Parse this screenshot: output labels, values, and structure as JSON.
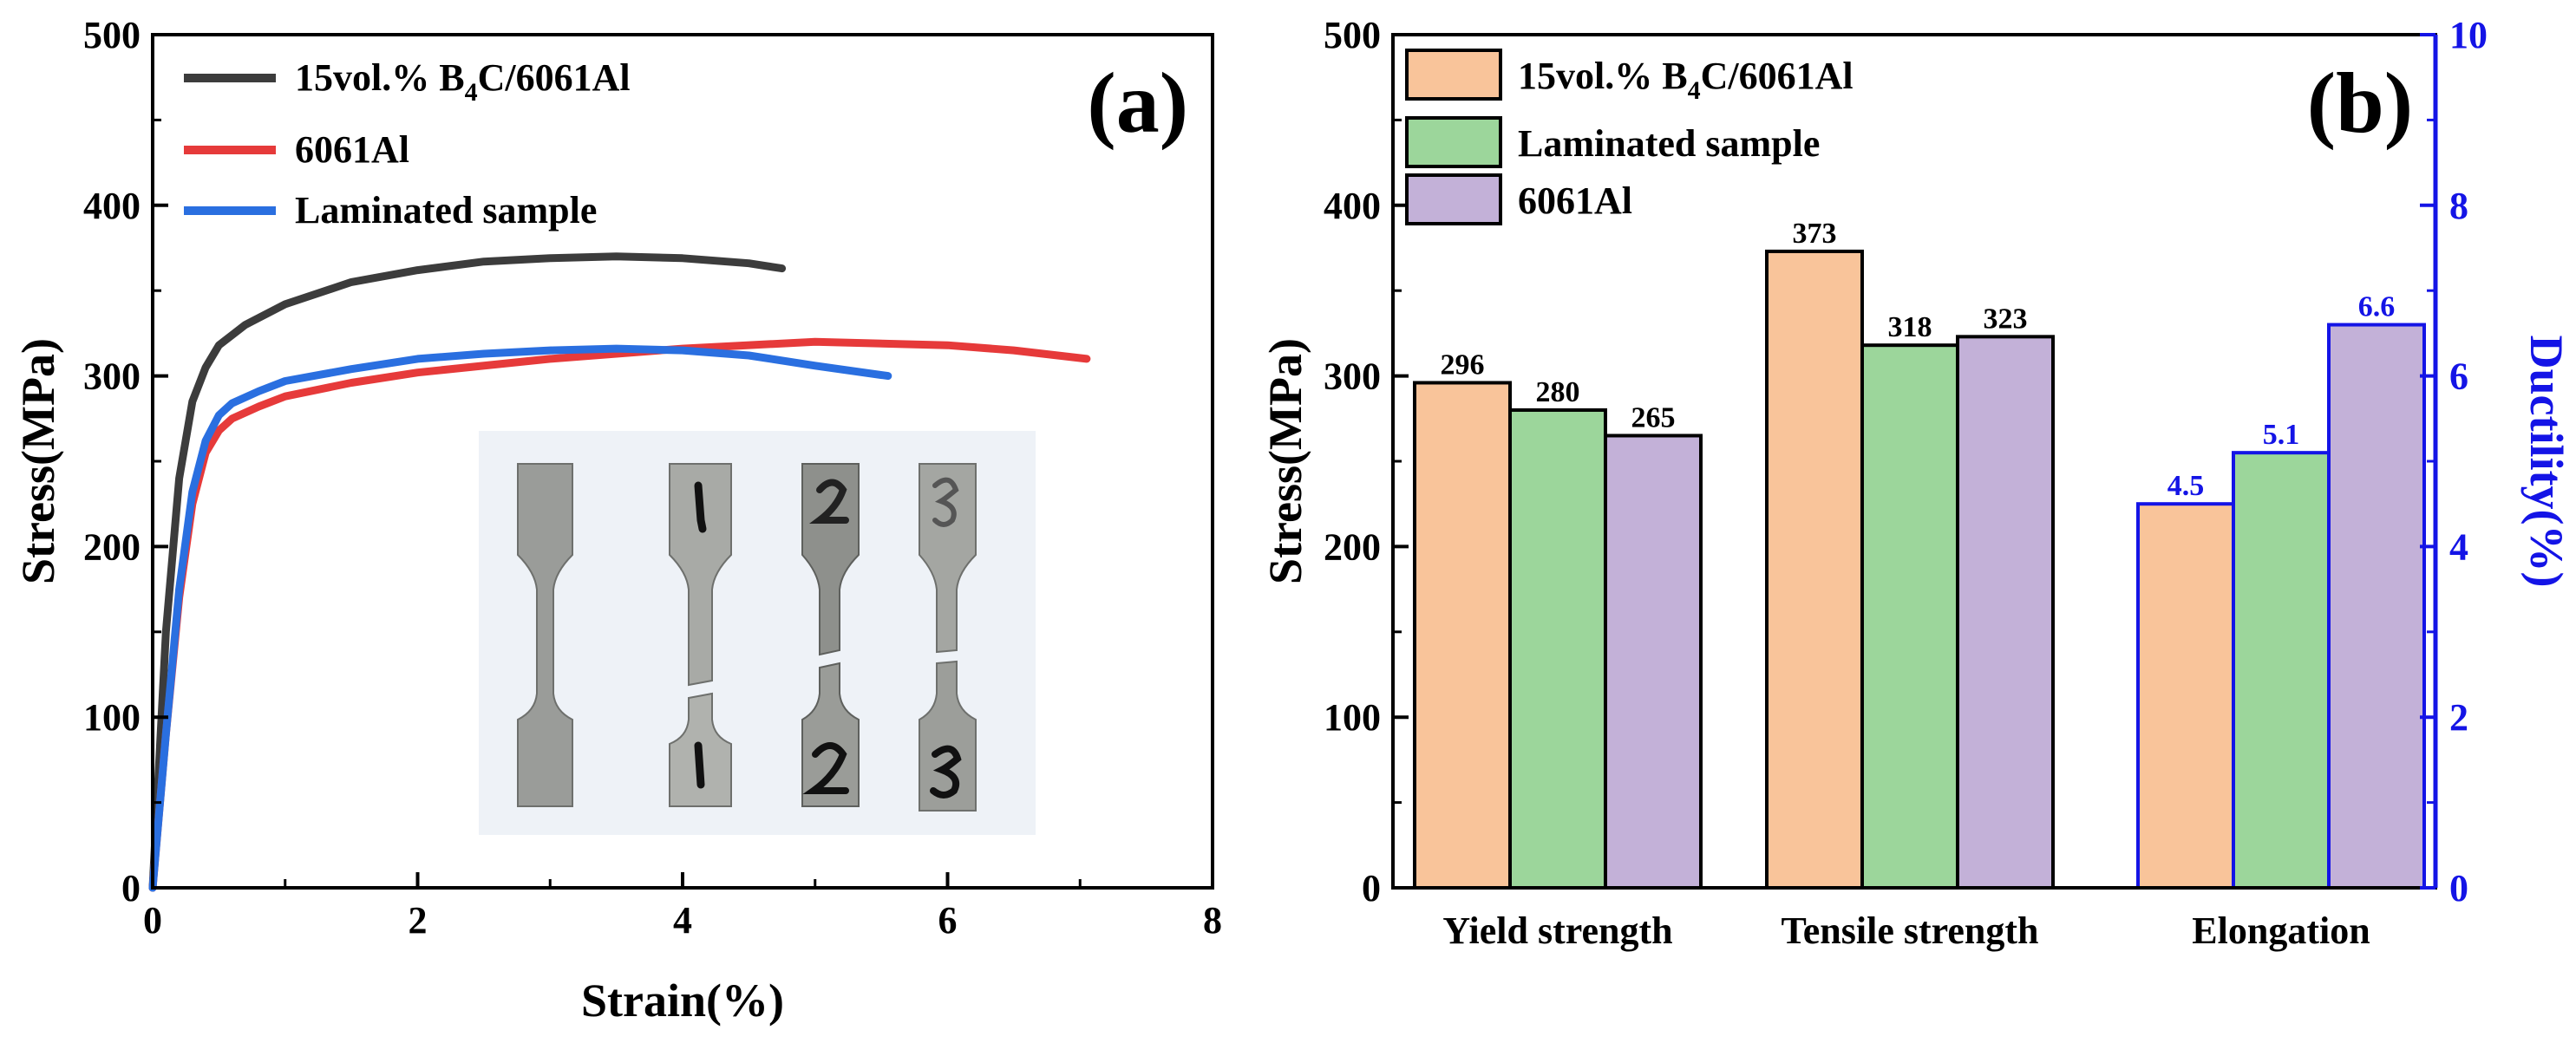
{
  "chart_data": [
    {
      "type": "line",
      "panel_label": "(a)",
      "xlabel": "Strain(%)",
      "ylabel": "Stress(MPa)",
      "xlim": [
        0,
        8
      ],
      "ylim": [
        0,
        500
      ],
      "xticks": [
        "0",
        "2",
        "4",
        "6",
        "8"
      ],
      "yticks": [
        "0",
        "100",
        "200",
        "300",
        "400",
        "500"
      ],
      "legend_position": "top-left",
      "inset": "photo of tensile test specimens labeled 1, 2, 3 (fractured) beside an untested specimen",
      "series": [
        {
          "name": "15vol.% B4C/6061Al",
          "legend_main": "15vol.% B",
          "legend_sub": "4",
          "legend_tail": "C/6061Al",
          "color": "#3c3c3c",
          "x": [
            0,
            0.1,
            0.2,
            0.3,
            0.4,
            0.5,
            0.7,
            1.0,
            1.5,
            2.0,
            2.5,
            3.0,
            3.5,
            4.0,
            4.5,
            4.75
          ],
          "y": [
            0,
            150,
            240,
            285,
            305,
            318,
            330,
            342,
            355,
            362,
            367,
            369,
            370,
            369,
            366,
            363
          ]
        },
        {
          "name": "6061Al",
          "legend_main": "6061Al",
          "color": "#e63a3a",
          "x": [
            0,
            0.1,
            0.2,
            0.3,
            0.4,
            0.5,
            0.6,
            0.8,
            1.0,
            1.5,
            2.0,
            3.0,
            4.0,
            5.0,
            6.0,
            6.5,
            7.05
          ],
          "y": [
            0,
            90,
            170,
            225,
            255,
            268,
            275,
            282,
            288,
            296,
            302,
            310,
            316,
            320,
            318,
            315,
            310
          ]
        },
        {
          "name": "Laminated sample",
          "legend_main": "Laminated sample",
          "color": "#2a6fe0",
          "x": [
            0,
            0.1,
            0.2,
            0.3,
            0.4,
            0.5,
            0.6,
            0.8,
            1.0,
            1.5,
            2.0,
            2.5,
            3.0,
            3.5,
            4.0,
            4.5,
            5.0,
            5.55
          ],
          "y": [
            0,
            90,
            175,
            232,
            262,
            277,
            284,
            291,
            297,
            304,
            310,
            313,
            315,
            316,
            315,
            312,
            306,
            300
          ]
        }
      ]
    },
    {
      "type": "bar",
      "panel_label": "(b)",
      "ylabel": "Stress(MPa)",
      "y2label": "Ductility(%)",
      "ylim": [
        0,
        500
      ],
      "y2lim": [
        0,
        10
      ],
      "yticks": [
        "0",
        "100",
        "200",
        "300",
        "400",
        "500"
      ],
      "y2ticks": [
        "0",
        "2",
        "4",
        "6",
        "8",
        "10"
      ],
      "categories": [
        "Yield strength",
        "Tensile strength",
        "Elongation"
      ],
      "legend_position": "top-left",
      "series": [
        {
          "name": "15vol.% B4C/6061Al",
          "legend_main": "15vol.% B",
          "legend_sub": "4",
          "legend_tail": "C/6061Al",
          "color": "#f9c49a",
          "values": [
            296,
            373,
            4.5
          ],
          "labels": [
            "296",
            "373",
            "4.5"
          ]
        },
        {
          "name": "Laminated sample",
          "legend_main": "Laminated sample",
          "color": "#9cd69b",
          "values": [
            280,
            318,
            5.1
          ],
          "labels": [
            "280",
            "318",
            "5.1"
          ]
        },
        {
          "name": "6061Al",
          "legend_main": "6061Al",
          "color": "#c3b1d8",
          "values": [
            265,
            323,
            6.6
          ],
          "labels": [
            "265",
            "323",
            "6.6"
          ]
        }
      ],
      "secondary_axis_color": "#1414e6",
      "secondary_axis_category": "Elongation"
    }
  ]
}
